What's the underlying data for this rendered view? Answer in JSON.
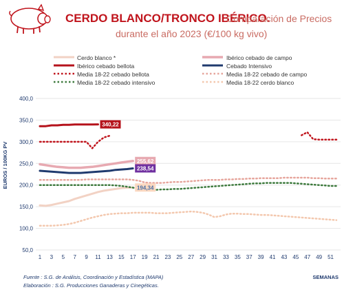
{
  "chart_data": {
    "type": "line",
    "title": "CERDO BLANCO/TRONCO IBÉRICO.",
    "subtitle_line1": "Comparación de Precios",
    "subtitle_line2": "durante el año 2023 (€/100 kg vivo)",
    "ylabel": "EUROS / 100KG PV",
    "xlabel": "SEMANAS",
    "ylim": [
      50,
      400
    ],
    "xlim": [
      1,
      52
    ],
    "yticks": [
      "50,0",
      "100,0",
      "150,0",
      "200,0",
      "250,0",
      "300,0",
      "350,0",
      "400,0"
    ],
    "ytick_values": [
      50,
      100,
      150,
      200,
      250,
      300,
      350,
      400
    ],
    "xticks": [
      "1",
      "3",
      "5",
      "7",
      "9",
      "11",
      "13",
      "15",
      "17",
      "19",
      "21",
      "23",
      "25",
      "27",
      "29",
      "31",
      "33",
      "35",
      "37",
      "39",
      "41",
      "43",
      "45",
      "47",
      "49",
      "51"
    ],
    "xtick_values": [
      1,
      3,
      5,
      7,
      9,
      11,
      13,
      15,
      17,
      19,
      21,
      23,
      25,
      27,
      29,
      31,
      33,
      35,
      37,
      39,
      41,
      43,
      45,
      47,
      49,
      51
    ],
    "grid": "horizontal",
    "legend_position": "top",
    "series": [
      {
        "name": "Cerdo blanco *",
        "color": "#f2d2c4",
        "style": "solid",
        "width": 3,
        "x": [
          1,
          2,
          3,
          4,
          5,
          6,
          7,
          8,
          9,
          10,
          11,
          12,
          13,
          14,
          15,
          16,
          17
        ],
        "values": [
          153,
          152,
          154,
          157,
          160,
          163,
          168,
          172,
          176,
          180,
          184,
          187,
          189,
          191,
          193,
          194,
          194.34
        ]
      },
      {
        "name": "Ibérico cebado de campo",
        "color": "#e7a9b1",
        "style": "solid",
        "width": 3.5,
        "x": [
          1,
          2,
          3,
          4,
          5,
          6,
          7,
          8,
          9,
          10,
          11,
          12,
          13,
          14,
          15,
          16,
          17
        ],
        "values": [
          248,
          246,
          244,
          242,
          241,
          240,
          240,
          240,
          241,
          242,
          244,
          246,
          248,
          250,
          252,
          254,
          255.62
        ]
      },
      {
        "name": "Ibérico cebado bellota",
        "color": "#b5121b",
        "style": "solid",
        "width": 3,
        "x": [
          1,
          2,
          3,
          4,
          5,
          6,
          7,
          8,
          9,
          10,
          11
        ],
        "values": [
          336,
          336,
          338,
          338,
          339,
          339,
          340,
          340,
          340,
          340,
          340.22
        ]
      },
      {
        "name": "Cebado Intensivo",
        "color": "#1f3a6e",
        "style": "solid",
        "width": 3,
        "x": [
          1,
          2,
          3,
          4,
          5,
          6,
          7,
          8,
          9,
          10,
          11,
          12,
          13,
          14,
          15,
          16,
          17
        ],
        "values": [
          233,
          232,
          231,
          230,
          229,
          228,
          228,
          228,
          229,
          230,
          231,
          232,
          233,
          235,
          236,
          237,
          238.54
        ]
      },
      {
        "name": "Media 18-22 cebado bellota",
        "color": "#c0141c",
        "style": "dotted",
        "width": 2.5,
        "x": [
          1,
          2,
          3,
          4,
          5,
          6,
          7,
          8,
          9,
          10,
          11,
          12,
          13,
          null,
          46,
          47,
          48,
          49,
          50,
          51,
          52
        ],
        "values": [
          300,
          300,
          300,
          300,
          300,
          300,
          300,
          300,
          300,
          285,
          300,
          310,
          314,
          null,
          315,
          322,
          306,
          305,
          305,
          305,
          305
        ]
      },
      {
        "name": "Media 18-22 cebado de campo",
        "color": "#e6a59c",
        "style": "dotted",
        "width": 2.5,
        "x": [
          1,
          2,
          3,
          4,
          5,
          6,
          7,
          8,
          9,
          10,
          11,
          12,
          13,
          14,
          15,
          16,
          17,
          18,
          19,
          20,
          21,
          22,
          23,
          24,
          25,
          26,
          27,
          28,
          29,
          30,
          31,
          32,
          33,
          34,
          35,
          36,
          37,
          38,
          39,
          40,
          41,
          42,
          43,
          44,
          45,
          46,
          47,
          48,
          49,
          50,
          51,
          52
        ],
        "values": [
          212,
          212,
          212,
          212,
          212,
          212,
          212,
          212,
          213,
          213,
          213,
          213,
          213,
          213,
          213,
          213,
          212,
          210,
          206,
          205,
          205,
          205,
          206,
          207,
          207,
          208,
          209,
          210,
          211,
          212,
          212,
          212,
          213,
          213,
          214,
          214,
          215,
          215,
          216,
          216,
          216,
          216,
          217,
          217,
          217,
          217,
          217,
          216,
          216,
          215,
          215,
          215
        ]
      },
      {
        "name": "Media 18-22 cebado intensivo",
        "color": "#3d7a3d",
        "style": "dotted",
        "width": 2.5,
        "x": [
          1,
          2,
          3,
          4,
          5,
          6,
          7,
          8,
          9,
          10,
          11,
          12,
          13,
          14,
          15,
          16,
          17,
          18,
          19,
          20,
          21,
          22,
          23,
          24,
          25,
          26,
          27,
          28,
          29,
          30,
          31,
          32,
          33,
          34,
          35,
          36,
          37,
          38,
          39,
          40,
          41,
          42,
          43,
          44,
          45,
          46,
          47,
          48,
          49,
          50,
          51,
          52
        ],
        "values": [
          200,
          200,
          200,
          200,
          200,
          200,
          200,
          200,
          200,
          200,
          200,
          200,
          200,
          199,
          198,
          196,
          194,
          192,
          190,
          189,
          189,
          190,
          190,
          191,
          191,
          192,
          193,
          194,
          195,
          196,
          197,
          198,
          199,
          200,
          201,
          202,
          203,
          204,
          204,
          205,
          205,
          205,
          205,
          205,
          204,
          203,
          202,
          201,
          200,
          199,
          198,
          198
        ]
      },
      {
        "name": "Media 18-22 cerdo blanco",
        "color": "#f3c7ad",
        "style": "dotted",
        "width": 2.5,
        "x": [
          1,
          2,
          3,
          4,
          5,
          6,
          7,
          8,
          9,
          10,
          11,
          12,
          13,
          14,
          15,
          16,
          17,
          18,
          19,
          20,
          21,
          22,
          23,
          24,
          25,
          26,
          27,
          28,
          29,
          30,
          31,
          32,
          33,
          34,
          35,
          36,
          37,
          38,
          39,
          40,
          41,
          42,
          43,
          44,
          45,
          46,
          47,
          48,
          49,
          50,
          51,
          52
        ],
        "values": [
          106,
          106,
          106,
          107,
          108,
          110,
          113,
          117,
          121,
          125,
          128,
          131,
          133,
          134,
          135,
          135,
          136,
          136,
          136,
          136,
          135,
          135,
          135,
          136,
          137,
          138,
          139,
          138,
          136,
          132,
          126,
          128,
          132,
          134,
          134,
          133,
          133,
          132,
          131,
          131,
          130,
          129,
          128,
          127,
          126,
          125,
          124,
          123,
          122,
          121,
          120,
          119
        ]
      }
    ],
    "data_labels": [
      {
        "text": "340,22",
        "x": 11,
        "y": 340.22,
        "bg": "#b5121b",
        "fg": "#ffffff"
      },
      {
        "text": "255,62",
        "x": 17,
        "y": 255.62,
        "bg": "#e7a9b1",
        "fg": "#ffffff"
      },
      {
        "text": "238,54",
        "x": 17,
        "y": 238.54,
        "bg": "#7030a0",
        "fg": "#ffffff"
      },
      {
        "text": "194,34",
        "x": 17,
        "y": 194.34,
        "bg": "#fbd8c0",
        "fg": "#4a6fa5"
      }
    ]
  },
  "source_line1": "Fuente : S.G. de Análisis, Coordinación y Estadística (MAPA)",
  "source_line2": "Elaboración : S.G. Producciones Ganaderas y Cinegéticas.",
  "colors": {
    "title_red": "#c0141c",
    "subtitle": "#c96b62",
    "axis_text": "#1f3a6e",
    "grid": "#e6e6e6"
  },
  "icon": "pig-icon"
}
